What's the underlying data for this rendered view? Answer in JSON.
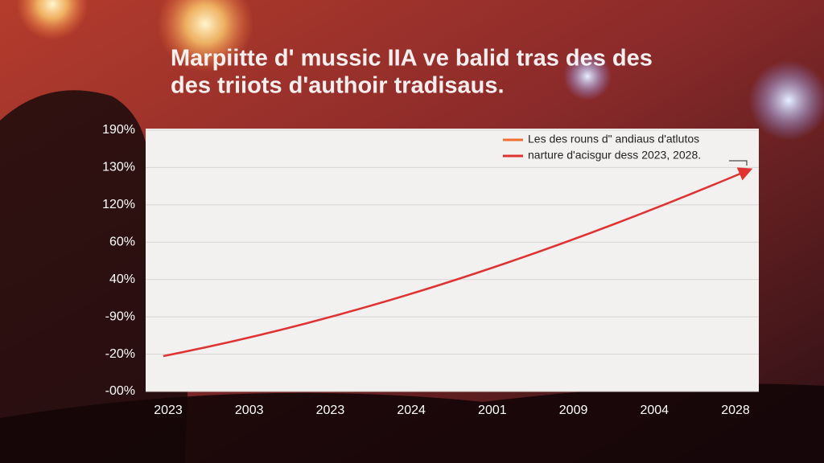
{
  "header": {
    "title_lines": [
      "Marpiitte d' mussic IIA ve balid tras des des",
      "des triiots d'authoir tradisaus."
    ]
  },
  "plot": {
    "y_axis_labels": [
      "190%",
      "130%",
      "120%",
      "60%",
      "40%",
      "-90%",
      "-20%",
      "-00%"
    ],
    "x_axis_labels": [
      "2023",
      "2003",
      "2023",
      "2024",
      "2001",
      "2009",
      "2004",
      "2028"
    ],
    "legend": [
      {
        "label": "Les des rouns d\" andiaus d'atlutos",
        "color": "#f07030"
      },
      {
        "label": "narture d'acisgur dess 2023, 2028.",
        "color": "#e03232"
      }
    ]
  }
}
